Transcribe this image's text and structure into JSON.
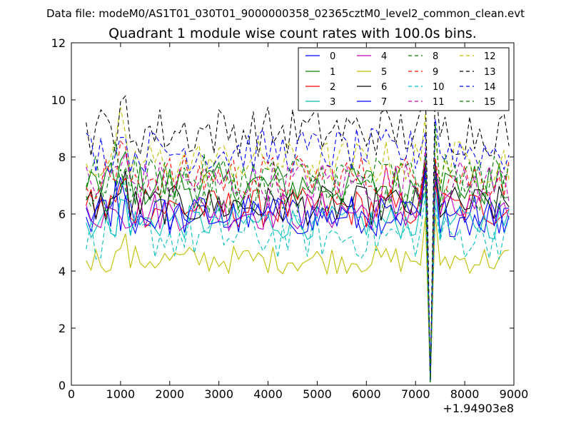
{
  "figure": {
    "suptitle": "Data file: modeM0/AS1T01_030T01_9000000358_02365cztM0_level2_common_clean.evt"
  },
  "chart_data": {
    "type": "line",
    "title": "Quadrant 1 module wise count rates with 100.0s bins.",
    "xlabel": "",
    "ylabel": "",
    "xlim": [
      0,
      9000
    ],
    "ylim": [
      0,
      12
    ],
    "x_offset_label": "+1.94903e8",
    "x_ticks": [
      "0",
      "1000",
      "2000",
      "3000",
      "4000",
      "5000",
      "6000",
      "7000",
      "8000",
      "9000"
    ],
    "y_ticks": [
      "0",
      "2",
      "4",
      "6",
      "8",
      "10",
      "12"
    ],
    "grid": false,
    "legend_position": "top-right",
    "legend_columns": 4,
    "x_start": 300,
    "x_step": 100,
    "x_end": 8950,
    "dip_at": 7300,
    "series": [
      {
        "name": "0",
        "color": "#0000ff",
        "dash": "solid",
        "base": 6.0,
        "amp": 0.35
      },
      {
        "name": "1",
        "color": "#008000",
        "dash": "solid",
        "base": 7.0,
        "amp": 0.4
      },
      {
        "name": "2",
        "color": "#ff0000",
        "dash": "solid",
        "base": 6.2,
        "amp": 0.35
      },
      {
        "name": "3",
        "color": "#00bfbf",
        "dash": "solid",
        "base": 5.7,
        "amp": 0.3
      },
      {
        "name": "4",
        "color": "#bf00bf",
        "dash": "solid",
        "base": 6.1,
        "amp": 0.35
      },
      {
        "name": "5",
        "color": "#bfbf00",
        "dash": "solid",
        "base": 4.4,
        "amp": 0.25
      },
      {
        "name": "6",
        "color": "#000000",
        "dash": "solid",
        "base": 6.3,
        "amp": 0.35
      },
      {
        "name": "7",
        "color": "#0000ff",
        "dash": "solid",
        "base": 5.9,
        "amp": 0.35
      },
      {
        "name": "8",
        "color": "#008000",
        "dash": "dashed",
        "base": 6.8,
        "amp": 0.4
      },
      {
        "name": "9",
        "color": "#ff0000",
        "dash": "dashed",
        "base": 7.3,
        "amp": 0.4
      },
      {
        "name": "10",
        "color": "#00bfbf",
        "dash": "dashed",
        "base": 5.2,
        "amp": 0.4
      },
      {
        "name": "11",
        "color": "#bf00bf",
        "dash": "dashed",
        "base": 7.1,
        "amp": 0.4
      },
      {
        "name": "12",
        "color": "#bfbf00",
        "dash": "dashed",
        "base": 7.8,
        "amp": 0.4
      },
      {
        "name": "13",
        "color": "#000000",
        "dash": "dashed",
        "base": 8.9,
        "amp": 0.45
      },
      {
        "name": "14",
        "color": "#0000ff",
        "dash": "dashed",
        "base": 8.2,
        "amp": 0.4
      },
      {
        "name": "15",
        "color": "#008000",
        "dash": "dashed",
        "base": 7.3,
        "amp": 0.4
      }
    ]
  }
}
